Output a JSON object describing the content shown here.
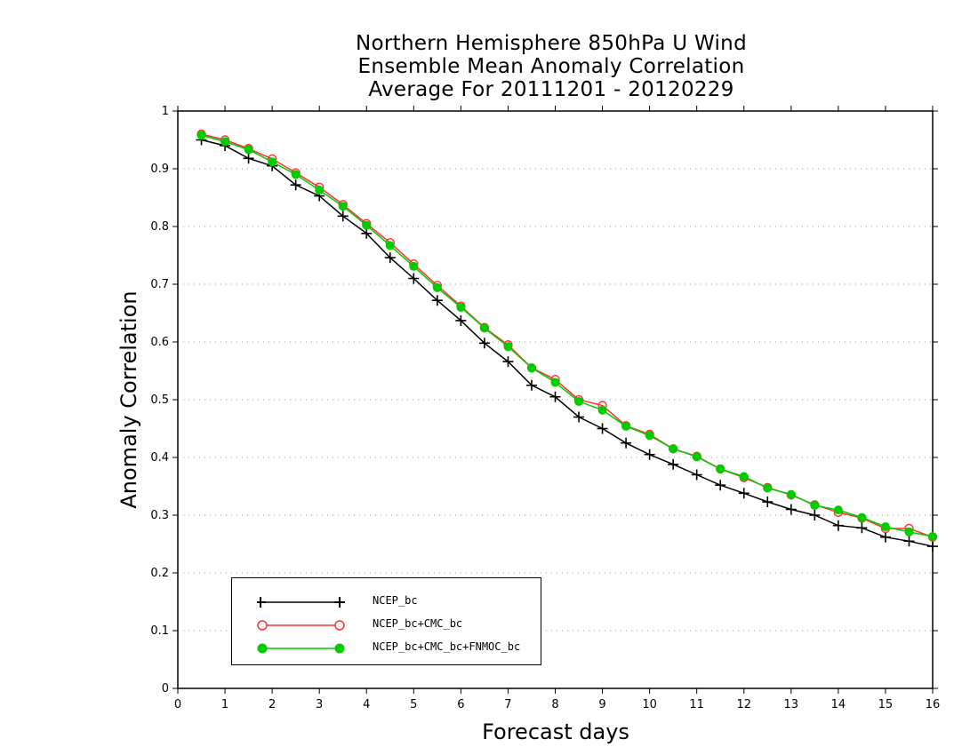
{
  "title_lines": [
    "Northern Hemisphere 850hPa U Wind",
    "Ensemble Mean Anomaly Correlation",
    "Average For 20111201 - 20120229"
  ],
  "colors": {
    "ncep": "#000000",
    "cmc": "#ff3030",
    "fnmoc": "#00cc00",
    "grid": "#999999"
  },
  "chart_data": {
    "type": "line",
    "title": "Northern Hemisphere 850hPa U Wind Ensemble Mean Anomaly Correlation Average For 20111201 - 20120229",
    "xlabel": "Forecast days",
    "ylabel": "Anomaly Correlation",
    "xlim": [
      0,
      16
    ],
    "ylim": [
      0,
      1
    ],
    "x_ticks": [
      "0",
      "1",
      "2",
      "3",
      "4",
      "5",
      "6",
      "7",
      "8",
      "9",
      "10",
      "11",
      "12",
      "13",
      "14",
      "15",
      "16"
    ],
    "y_ticks": [
      "0",
      "0.1",
      "0.2",
      "0.3",
      "0.4",
      "0.5",
      "0.6",
      "0.7",
      "0.8",
      "0.9",
      "1"
    ],
    "grid": "horizontal dotted",
    "legend_position": "lower-left",
    "x": [
      0.5,
      1,
      1.5,
      2,
      2.5,
      3,
      3.5,
      4,
      4.5,
      5,
      5.5,
      6,
      6.5,
      7,
      7.5,
      8,
      8.5,
      9,
      9.5,
      10,
      10.5,
      11,
      11.5,
      12,
      12.5,
      13,
      13.5,
      14,
      14.5,
      15,
      15.5,
      16
    ],
    "series": [
      {
        "name": "NCEP_bc",
        "marker": "plus",
        "values": [
          0.95,
          0.94,
          0.918,
          0.905,
          0.872,
          0.853,
          0.818,
          0.788,
          0.746,
          0.71,
          0.672,
          0.637,
          0.598,
          0.566,
          0.525,
          0.505,
          0.47,
          0.45,
          0.425,
          0.405,
          0.388,
          0.37,
          0.352,
          0.338,
          0.323,
          0.31,
          0.3,
          0.282,
          0.278,
          0.262,
          0.255,
          0.246
        ]
      },
      {
        "name": "NCEP_bc+CMC_bc",
        "marker": "open-circle",
        "values": [
          0.96,
          0.95,
          0.935,
          0.917,
          0.893,
          0.868,
          0.838,
          0.805,
          0.772,
          0.735,
          0.698,
          0.662,
          0.625,
          0.595,
          0.555,
          0.535,
          0.5,
          0.49,
          0.455,
          0.44,
          0.415,
          0.402,
          0.38,
          0.365,
          0.348,
          0.335,
          0.318,
          0.305,
          0.295,
          0.277,
          0.277,
          0.262
        ]
      },
      {
        "name": "NCEP_bc+CMC_bc+FNMOC_bc",
        "marker": "filled-circle",
        "values": [
          0.958,
          0.947,
          0.933,
          0.912,
          0.89,
          0.863,
          0.835,
          0.802,
          0.767,
          0.731,
          0.694,
          0.66,
          0.624,
          0.592,
          0.555,
          0.53,
          0.497,
          0.482,
          0.454,
          0.438,
          0.415,
          0.401,
          0.38,
          0.367,
          0.347,
          0.336,
          0.317,
          0.309,
          0.296,
          0.28,
          0.271,
          0.263
        ]
      }
    ]
  }
}
